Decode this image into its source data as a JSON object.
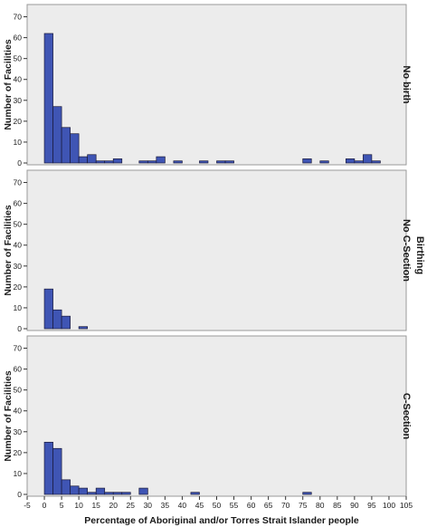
{
  "chart_data": {
    "type": "bar",
    "xlabel": "Percentage of Aboriginal and/or Torres Strait Islander people",
    "ylabel": "Number of Facilities",
    "facet_group_label": "Birthing",
    "x_ticks": [
      -5,
      0,
      5,
      10,
      15,
      20,
      25,
      30,
      35,
      40,
      45,
      50,
      55,
      60,
      65,
      70,
      75,
      80,
      85,
      90,
      95,
      100,
      105
    ],
    "xlim": [
      -5,
      105
    ],
    "ylim": [
      0,
      75
    ],
    "y_ticks": [
      0,
      10,
      20,
      30,
      40,
      50,
      60,
      70
    ],
    "bin_width": 2.5,
    "colors": {
      "bar": "#3f55b4",
      "bar_edge": "#1a1a3a",
      "panel_bg": "#ececec",
      "frame": "#9a9a9a"
    },
    "panels": [
      {
        "name": "No birth",
        "bins": [
          [
            0,
            62
          ],
          [
            2.5,
            27
          ],
          [
            5,
            17
          ],
          [
            7.5,
            14
          ],
          [
            10,
            3
          ],
          [
            12.5,
            4
          ],
          [
            15,
            1
          ],
          [
            17.5,
            1
          ],
          [
            20,
            2
          ],
          [
            27.5,
            1
          ],
          [
            30,
            1
          ],
          [
            32.5,
            3
          ],
          [
            37.5,
            1
          ],
          [
            45,
            1
          ],
          [
            50,
            1
          ],
          [
            52.5,
            1
          ],
          [
            75,
            2
          ],
          [
            80,
            1
          ],
          [
            87.5,
            2
          ],
          [
            90,
            1
          ],
          [
            92.5,
            4
          ],
          [
            95,
            1
          ]
        ]
      },
      {
        "name": "No C-Section",
        "bins": [
          [
            0,
            19
          ],
          [
            2.5,
            9
          ],
          [
            5,
            6
          ],
          [
            10,
            1
          ]
        ]
      },
      {
        "name": "C-Section",
        "bins": [
          [
            0,
            25
          ],
          [
            2.5,
            22
          ],
          [
            5,
            7
          ],
          [
            7.5,
            4
          ],
          [
            10,
            3
          ],
          [
            12.5,
            1
          ],
          [
            15,
            3
          ],
          [
            17.5,
            1
          ],
          [
            20,
            1
          ],
          [
            22.5,
            1
          ],
          [
            27.5,
            3
          ],
          [
            42.5,
            1
          ],
          [
            75,
            1
          ]
        ]
      }
    ]
  }
}
